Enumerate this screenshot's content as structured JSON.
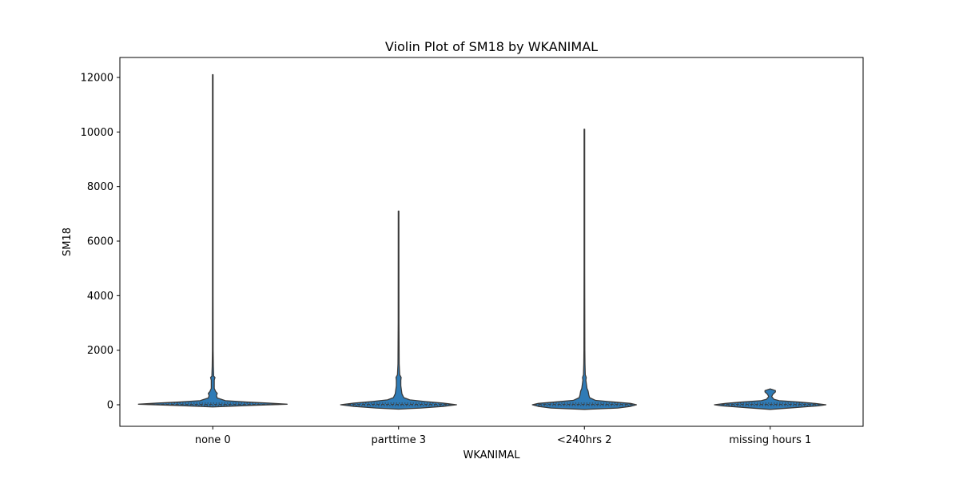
{
  "chart_data": {
    "type": "violin",
    "title": "Violin Plot of SM18 by WKANIMAL",
    "xlabel": "WKANIMAL",
    "ylabel": "SM18",
    "categories": [
      "none 0",
      "parttime 3",
      "<240hrs 2",
      "missing hours 1"
    ],
    "yticks": [
      0,
      2000,
      4000,
      6000,
      8000,
      10000,
      12000
    ],
    "ylim": [
      -800,
      12700
    ],
    "grid": false,
    "color": "#2f7bb6",
    "line_color": "#3a3a3a",
    "violins": [
      {
        "category": "none 0",
        "max": 12100,
        "profile": [
          [
            -80,
            0
          ],
          [
            -20,
            0.55
          ],
          [
            20,
            1.0
          ],
          [
            60,
            0.75
          ],
          [
            100,
            0.45
          ],
          [
            150,
            0.17
          ],
          [
            250,
            0.06
          ],
          [
            330,
            0.05
          ],
          [
            420,
            0.06
          ],
          [
            480,
            0.04
          ],
          [
            600,
            0.02
          ],
          [
            900,
            0.02
          ],
          [
            1000,
            0.03
          ],
          [
            1050,
            0.012
          ],
          [
            1400,
            0.008
          ],
          [
            2000,
            0.005
          ],
          [
            4000,
            0.004
          ],
          [
            8000,
            0.004
          ],
          [
            12100,
            0.004
          ]
        ]
      },
      {
        "category": "parttime 3",
        "max": 7100,
        "profile": [
          [
            -160,
            0
          ],
          [
            -120,
            0.3
          ],
          [
            -60,
            0.6
          ],
          [
            0,
            0.78
          ],
          [
            60,
            0.6
          ],
          [
            120,
            0.35
          ],
          [
            180,
            0.15
          ],
          [
            260,
            0.07
          ],
          [
            400,
            0.045
          ],
          [
            700,
            0.03
          ],
          [
            900,
            0.03
          ],
          [
            1000,
            0.035
          ],
          [
            1100,
            0.015
          ],
          [
            1500,
            0.008
          ],
          [
            3000,
            0.005
          ],
          [
            7100,
            0.004
          ]
        ]
      },
      {
        "category": "<240hrs 2",
        "max": 10100,
        "profile": [
          [
            -170,
            0
          ],
          [
            -120,
            0.45
          ],
          [
            -60,
            0.62
          ],
          [
            0,
            0.7
          ],
          [
            50,
            0.62
          ],
          [
            100,
            0.4
          ],
          [
            160,
            0.15
          ],
          [
            260,
            0.07
          ],
          [
            350,
            0.06
          ],
          [
            500,
            0.05
          ],
          [
            600,
            0.035
          ],
          [
            900,
            0.02
          ],
          [
            1000,
            0.025
          ],
          [
            1100,
            0.012
          ],
          [
            1500,
            0.008
          ],
          [
            2000,
            0.006
          ],
          [
            5000,
            0.004
          ],
          [
            10100,
            0.004
          ]
        ]
      },
      {
        "category": "missing hours 1",
        "max": 560,
        "profile": [
          [
            -170,
            0
          ],
          [
            -100,
            0.35
          ],
          [
            -40,
            0.65
          ],
          [
            0,
            0.75
          ],
          [
            50,
            0.6
          ],
          [
            100,
            0.38
          ],
          [
            150,
            0.12
          ],
          [
            200,
            0.05
          ],
          [
            300,
            0.02
          ],
          [
            380,
            0.035
          ],
          [
            470,
            0.07
          ],
          [
            520,
            0.07
          ],
          [
            560,
            0.025
          ],
          [
            580,
            0
          ]
        ]
      }
    ]
  }
}
